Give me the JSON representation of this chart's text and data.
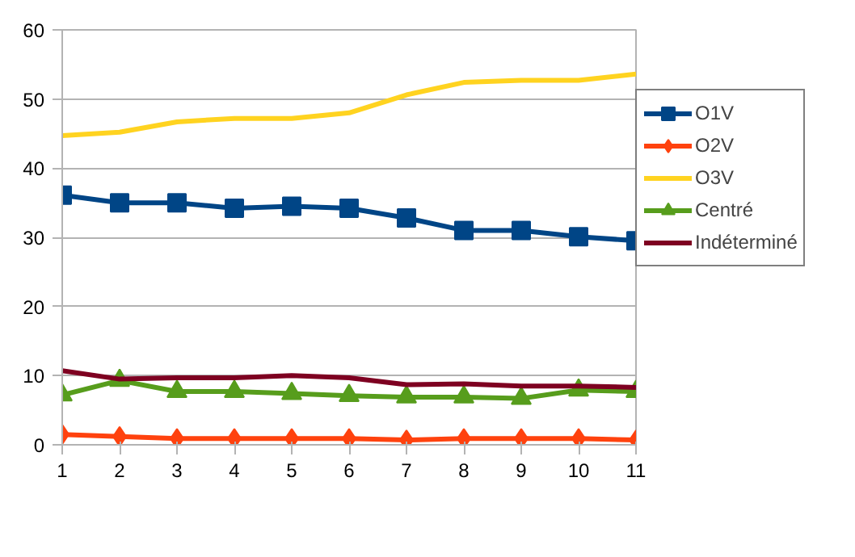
{
  "chart_data": {
    "type": "line",
    "x": [
      1,
      2,
      3,
      4,
      5,
      6,
      7,
      8,
      9,
      10,
      11
    ],
    "xlim": [
      1,
      11
    ],
    "xticks": [
      1,
      2,
      3,
      4,
      5,
      6,
      7,
      8,
      9,
      10,
      11
    ],
    "ylim": [
      0,
      60
    ],
    "yticks": [
      0,
      10,
      20,
      30,
      40,
      50,
      60
    ],
    "grid": "y",
    "legend": "right",
    "series": [
      {
        "name": "O1V",
        "color": "#004586",
        "marker": "square",
        "values": [
          36.1,
          35,
          35,
          34.2,
          34.5,
          34.2,
          32.8,
          31,
          31,
          30.1,
          29.5
        ]
      },
      {
        "name": "O2V",
        "color": "#ff420e",
        "marker": "diamond",
        "values": [
          1.5,
          1.2,
          0.9,
          0.9,
          0.9,
          0.9,
          0.7,
          0.9,
          0.9,
          0.9,
          0.7
        ]
      },
      {
        "name": "O3V",
        "color": "#ffd320",
        "marker": "none",
        "values": [
          44.7,
          45.2,
          46.7,
          47.2,
          47.2,
          48,
          50.6,
          52.4,
          52.7,
          52.7,
          53.6
        ]
      },
      {
        "name": "Centré",
        "color": "#579d1c",
        "marker": "triangle",
        "values": [
          7.2,
          9.3,
          7.7,
          7.7,
          7.4,
          7.1,
          6.9,
          6.9,
          6.7,
          7.9,
          7.7
        ]
      },
      {
        "name": "Indéterminé",
        "color": "#7e0021",
        "marker": "none",
        "values": [
          10.7,
          9.5,
          9.7,
          9.7,
          10,
          9.7,
          8.7,
          8.8,
          8.5,
          8.5,
          8.3
        ]
      }
    ]
  }
}
